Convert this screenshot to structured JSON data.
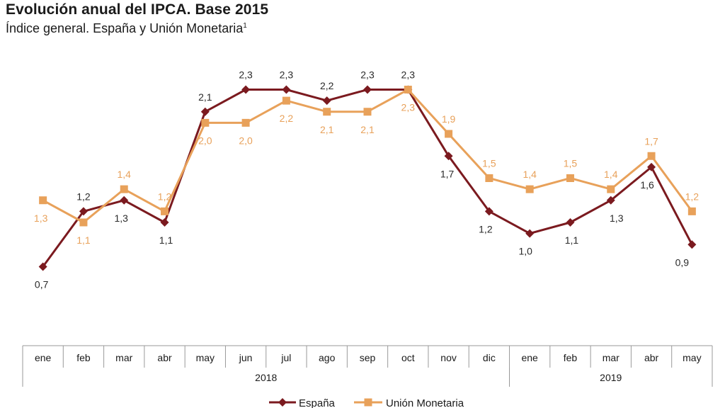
{
  "header": {
    "title": "Evolución anual del IPCA. Base 2015",
    "subtitle": "Índice general. España y Unión Monetaria",
    "footnote_mark": "1"
  },
  "chart_data": {
    "type": "line",
    "title": "Evolución anual del IPCA. Base 2015",
    "subtitle": "Índice general. España y Unión Monetaria",
    "categories": [
      "ene",
      "feb",
      "mar",
      "abr",
      "may",
      "jun",
      "jul",
      "ago",
      "sep",
      "oct",
      "nov",
      "dic",
      "ene",
      "feb",
      "mar",
      "abr",
      "may"
    ],
    "year_groups": [
      {
        "label": "2018",
        "start": 0,
        "end": 11
      },
      {
        "label": "2019",
        "start": 12,
        "end": 16
      }
    ],
    "series": [
      {
        "name": "España",
        "color": "#7b1a1f",
        "marker": "diamond",
        "values": [
          0.7,
          1.2,
          1.3,
          1.1,
          2.1,
          2.3,
          2.3,
          2.2,
          2.3,
          2.3,
          1.7,
          1.2,
          1.0,
          1.1,
          1.3,
          1.6,
          0.9
        ],
        "labels": [
          "0,7",
          "1,2",
          "1,3",
          "1,1",
          "2,1",
          "2,3",
          "2,3",
          "2,2",
          "2,3",
          "2,3",
          "1,7",
          "1,2",
          "1,0",
          "1,1",
          "1,3",
          "1,6",
          "0,9"
        ]
      },
      {
        "name": "Unión Monetaria",
        "color": "#e8a15a",
        "marker": "square",
        "values": [
          1.3,
          1.1,
          1.4,
          1.2,
          2.0,
          2.0,
          2.2,
          2.1,
          2.1,
          2.3,
          1.9,
          1.5,
          1.4,
          1.5,
          1.4,
          1.7,
          1.2
        ],
        "labels": [
          "1,3",
          "1,1",
          "1,4",
          "1,2",
          "2,0",
          "2,0",
          "2,2",
          "2,1",
          "2,1",
          "2,3",
          "1,9",
          "1,5",
          "1,4",
          "1,5",
          "1,4",
          "1,7",
          "1,2"
        ]
      }
    ],
    "xlabel": "",
    "ylabel": "",
    "grid": false,
    "legend": "bottom"
  }
}
